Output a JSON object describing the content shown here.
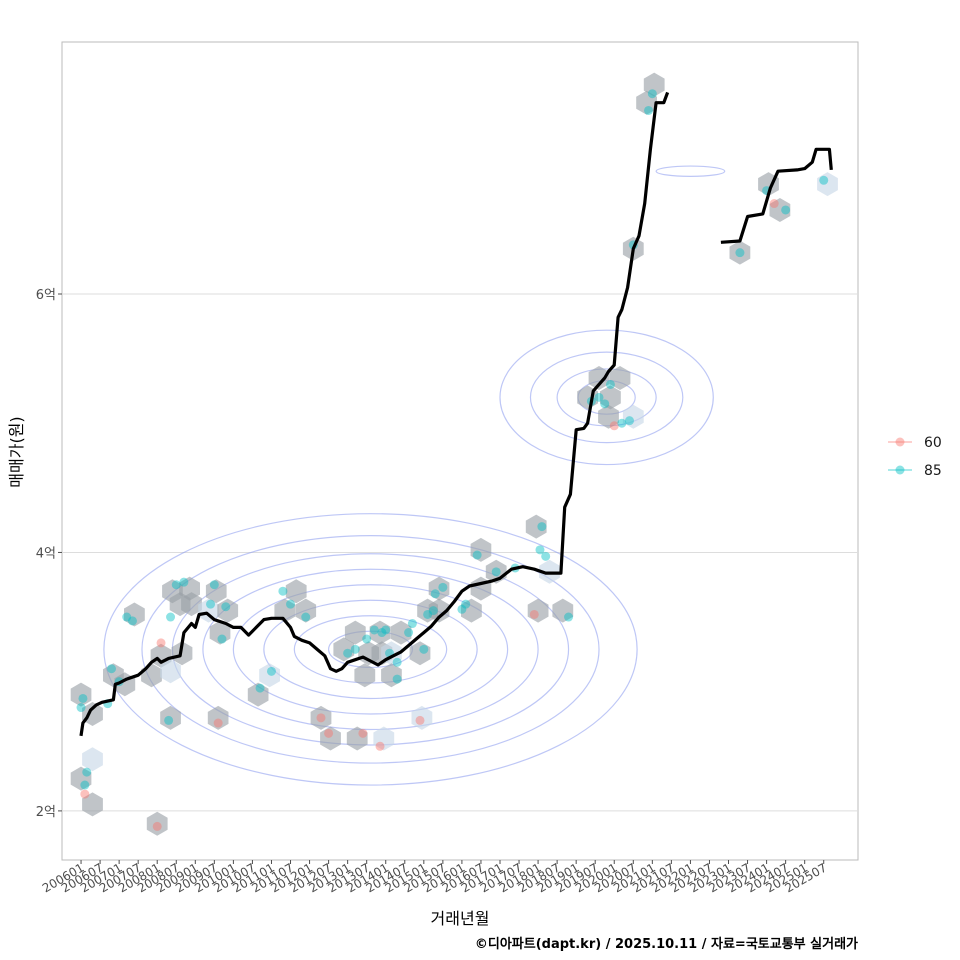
{
  "chart_data": {
    "type": "line",
    "xlabel": "거래년월",
    "ylabel": "매매가(원)",
    "caption": "©디아파트(dapt.kr) / 2025.10.11 / 자료=국토교통부 실거래가",
    "x_ticks": [
      "200601",
      "200607",
      "200701",
      "200707",
      "200801",
      "200807",
      "200901",
      "200907",
      "201001",
      "201007",
      "201101",
      "201107",
      "201201",
      "201207",
      "201301",
      "201307",
      "201401",
      "201407",
      "201501",
      "201507",
      "201601",
      "201607",
      "201701",
      "201707",
      "201801",
      "201807",
      "201901",
      "201907",
      "202001",
      "202007",
      "202101",
      "202107",
      "202201",
      "202207",
      "202301",
      "202307",
      "202401",
      "202407",
      "202501",
      "202507"
    ],
    "y_ticks": [
      {
        "value": 2,
        "label": "2억"
      },
      {
        "value": 4,
        "label": "4억"
      },
      {
        "value": 6,
        "label": "6억"
      }
    ],
    "xlim": [
      2005.5,
      2026.4
    ],
    "ylim": [
      1.62,
      7.95
    ],
    "legend": {
      "position": "right",
      "entries": [
        {
          "name": "60",
          "color": "#F8766D"
        },
        {
          "name": "85",
          "color": "#00BFC4"
        }
      ]
    },
    "colors": {
      "trend": "#000000",
      "hex": "#9aa0a6",
      "hex_light": "#c6d6e6",
      "contour": "#8899ee",
      "grid": "#dddddd",
      "border": "#bbbbbb"
    },
    "trend_units": "억원",
    "trend_segments": [
      {
        "name": "trend-1",
        "points": [
          [
            2006.0,
            2.58
          ],
          [
            2006.05,
            2.68
          ],
          [
            2006.15,
            2.72
          ],
          [
            2006.25,
            2.78
          ],
          [
            2006.4,
            2.82
          ],
          [
            2006.55,
            2.84
          ],
          [
            2006.85,
            2.86
          ],
          [
            2006.9,
            2.98
          ],
          [
            2007.0,
            2.99
          ],
          [
            2007.2,
            3.02
          ],
          [
            2007.5,
            3.05
          ],
          [
            2007.7,
            3.1
          ],
          [
            2007.85,
            3.15
          ],
          [
            2008.0,
            3.18
          ],
          [
            2008.1,
            3.15
          ],
          [
            2008.3,
            3.18
          ],
          [
            2008.6,
            3.2
          ],
          [
            2008.7,
            3.38
          ],
          [
            2008.9,
            3.45
          ],
          [
            2009.0,
            3.42
          ],
          [
            2009.1,
            3.52
          ],
          [
            2009.3,
            3.53
          ],
          [
            2009.5,
            3.48
          ],
          [
            2009.8,
            3.45
          ],
          [
            2010.0,
            3.42
          ],
          [
            2010.2,
            3.42
          ],
          [
            2010.4,
            3.36
          ],
          [
            2010.6,
            3.42
          ],
          [
            2010.8,
            3.48
          ],
          [
            2011.0,
            3.49
          ],
          [
            2011.3,
            3.49
          ],
          [
            2011.5,
            3.42
          ],
          [
            2011.6,
            3.35
          ],
          [
            2011.8,
            3.32
          ],
          [
            2012.0,
            3.3
          ],
          [
            2012.2,
            3.25
          ],
          [
            2012.4,
            3.2
          ],
          [
            2012.55,
            3.1
          ],
          [
            2012.7,
            3.08
          ],
          [
            2012.85,
            3.1
          ],
          [
            2013.0,
            3.15
          ],
          [
            2013.2,
            3.17
          ],
          [
            2013.4,
            3.19
          ],
          [
            2013.6,
            3.16
          ],
          [
            2013.8,
            3.13
          ],
          [
            2014.0,
            3.17
          ],
          [
            2014.2,
            3.2
          ],
          [
            2014.4,
            3.23
          ],
          [
            2014.6,
            3.28
          ],
          [
            2014.8,
            3.33
          ],
          [
            2015.0,
            3.38
          ],
          [
            2015.2,
            3.43
          ],
          [
            2015.4,
            3.5
          ],
          [
            2015.6,
            3.55
          ],
          [
            2015.8,
            3.62
          ],
          [
            2016.0,
            3.7
          ],
          [
            2016.2,
            3.74
          ],
          [
            2016.5,
            3.76
          ],
          [
            2016.8,
            3.78
          ],
          [
            2017.0,
            3.8
          ],
          [
            2017.3,
            3.87
          ],
          [
            2017.6,
            3.89
          ],
          [
            2017.9,
            3.87
          ],
          [
            2018.2,
            3.84
          ],
          [
            2018.6,
            3.84
          ],
          [
            2018.7,
            4.35
          ],
          [
            2018.85,
            4.45
          ],
          [
            2019.0,
            4.95
          ],
          [
            2019.2,
            4.96
          ],
          [
            2019.3,
            5.0
          ],
          [
            2019.45,
            5.25
          ],
          [
            2019.6,
            5.3
          ],
          [
            2019.75,
            5.35
          ],
          [
            2019.85,
            5.4
          ],
          [
            2020.0,
            5.45
          ],
          [
            2020.1,
            5.82
          ],
          [
            2020.2,
            5.88
          ],
          [
            2020.35,
            6.05
          ],
          [
            2020.5,
            6.35
          ],
          [
            2020.65,
            6.45
          ],
          [
            2020.8,
            6.7
          ],
          [
            2020.95,
            7.12
          ],
          [
            2021.1,
            7.48
          ],
          [
            2021.3,
            7.48
          ],
          [
            2021.4,
            7.56
          ]
        ]
      },
      {
        "name": "trend-2",
        "points": [
          [
            2022.8,
            6.4
          ],
          [
            2023.3,
            6.41
          ],
          [
            2023.5,
            6.6
          ],
          [
            2023.9,
            6.62
          ],
          [
            2024.1,
            6.82
          ],
          [
            2024.3,
            6.95
          ],
          [
            2024.8,
            6.96
          ],
          [
            2025.0,
            6.97
          ],
          [
            2025.2,
            7.02
          ],
          [
            2025.3,
            7.12
          ],
          [
            2025.65,
            7.12
          ],
          [
            2025.7,
            6.96
          ]
        ]
      }
    ],
    "scatter_units": "억원",
    "scatter_points": [
      {
        "x": 2006.0,
        "y": 2.8,
        "s": "85"
      },
      {
        "x": 2006.05,
        "y": 2.87,
        "s": "85"
      },
      {
        "x": 2006.1,
        "y": 2.2,
        "s": "85"
      },
      {
        "x": 2006.15,
        "y": 2.3,
        "s": "85"
      },
      {
        "x": 2006.1,
        "y": 2.13,
        "s": "60"
      },
      {
        "x": 2006.7,
        "y": 2.83,
        "s": "85"
      },
      {
        "x": 2006.8,
        "y": 3.1,
        "s": "85"
      },
      {
        "x": 2007.0,
        "y": 3.0,
        "s": "85"
      },
      {
        "x": 2007.2,
        "y": 3.5,
        "s": "85"
      },
      {
        "x": 2007.35,
        "y": 3.47,
        "s": "85"
      },
      {
        "x": 2008.1,
        "y": 3.3,
        "s": "60"
      },
      {
        "x": 2008.3,
        "y": 2.7,
        "s": "85"
      },
      {
        "x": 2008.35,
        "y": 3.5,
        "s": "85"
      },
      {
        "x": 2008.5,
        "y": 3.75,
        "s": "85"
      },
      {
        "x": 2008.7,
        "y": 3.77,
        "s": "85"
      },
      {
        "x": 2008.0,
        "y": 1.88,
        "s": "60"
      },
      {
        "x": 2009.5,
        "y": 3.75,
        "s": "85"
      },
      {
        "x": 2009.4,
        "y": 3.6,
        "s": "85"
      },
      {
        "x": 2009.7,
        "y": 3.33,
        "s": "85"
      },
      {
        "x": 2009.8,
        "y": 3.58,
        "s": "85"
      },
      {
        "x": 2009.6,
        "y": 2.68,
        "s": "60"
      },
      {
        "x": 2010.7,
        "y": 2.95,
        "s": "85"
      },
      {
        "x": 2011.0,
        "y": 3.08,
        "s": "85"
      },
      {
        "x": 2011.3,
        "y": 3.7,
        "s": "85"
      },
      {
        "x": 2011.5,
        "y": 3.6,
        "s": "85"
      },
      {
        "x": 2011.9,
        "y": 3.5,
        "s": "85"
      },
      {
        "x": 2012.3,
        "y": 2.72,
        "s": "60"
      },
      {
        "x": 2012.5,
        "y": 2.6,
        "s": "60"
      },
      {
        "x": 2013.0,
        "y": 3.22,
        "s": "85"
      },
      {
        "x": 2013.2,
        "y": 3.25,
        "s": "85"
      },
      {
        "x": 2013.5,
        "y": 3.33,
        "s": "85"
      },
      {
        "x": 2013.7,
        "y": 3.4,
        "s": "85"
      },
      {
        "x": 2013.4,
        "y": 2.6,
        "s": "60"
      },
      {
        "x": 2013.9,
        "y": 3.38,
        "s": "85"
      },
      {
        "x": 2014.0,
        "y": 3.4,
        "s": "85"
      },
      {
        "x": 2014.1,
        "y": 3.22,
        "s": "85"
      },
      {
        "x": 2014.3,
        "y": 3.02,
        "s": "85"
      },
      {
        "x": 2014.3,
        "y": 3.15,
        "s": "85"
      },
      {
        "x": 2013.85,
        "y": 2.5,
        "s": "60"
      },
      {
        "x": 2014.6,
        "y": 3.38,
        "s": "85"
      },
      {
        "x": 2014.7,
        "y": 3.45,
        "s": "85"
      },
      {
        "x": 2015.0,
        "y": 3.25,
        "s": "85"
      },
      {
        "x": 2015.1,
        "y": 3.52,
        "s": "85"
      },
      {
        "x": 2015.25,
        "y": 3.55,
        "s": "85"
      },
      {
        "x": 2015.3,
        "y": 3.68,
        "s": "85"
      },
      {
        "x": 2015.5,
        "y": 3.73,
        "s": "85"
      },
      {
        "x": 2014.9,
        "y": 2.7,
        "s": "60"
      },
      {
        "x": 2016.0,
        "y": 3.56,
        "s": "85"
      },
      {
        "x": 2016.1,
        "y": 3.6,
        "s": "85"
      },
      {
        "x": 2016.4,
        "y": 3.98,
        "s": "85"
      },
      {
        "x": 2016.9,
        "y": 3.85,
        "s": "85"
      },
      {
        "x": 2017.4,
        "y": 3.88,
        "s": "85"
      },
      {
        "x": 2017.9,
        "y": 3.52,
        "s": "60"
      },
      {
        "x": 2018.1,
        "y": 4.2,
        "s": "85"
      },
      {
        "x": 2018.05,
        "y": 4.02,
        "s": "85"
      },
      {
        "x": 2018.2,
        "y": 3.97,
        "s": "85"
      },
      {
        "x": 2018.8,
        "y": 3.5,
        "s": "85"
      },
      {
        "x": 2019.4,
        "y": 5.17,
        "s": "85"
      },
      {
        "x": 2019.75,
        "y": 5.15,
        "s": "85"
      },
      {
        "x": 2019.9,
        "y": 5.3,
        "s": "85"
      },
      {
        "x": 2019.6,
        "y": 5.2,
        "s": "85"
      },
      {
        "x": 2020.0,
        "y": 4.98,
        "s": "60"
      },
      {
        "x": 2020.2,
        "y": 5.0,
        "s": "85"
      },
      {
        "x": 2020.4,
        "y": 5.02,
        "s": "85"
      },
      {
        "x": 2020.5,
        "y": 6.38,
        "s": "85"
      },
      {
        "x": 2020.9,
        "y": 7.42,
        "s": "85"
      },
      {
        "x": 2021.0,
        "y": 7.55,
        "s": "85"
      },
      {
        "x": 2023.3,
        "y": 6.32,
        "s": "85"
      },
      {
        "x": 2024.0,
        "y": 6.8,
        "s": "85"
      },
      {
        "x": 2024.2,
        "y": 6.7,
        "s": "60"
      },
      {
        "x": 2024.5,
        "y": 6.65,
        "s": "85"
      },
      {
        "x": 2025.5,
        "y": 6.88,
        "s": "85"
      }
    ],
    "hexbins": [
      {
        "x": 2006.0,
        "y": 2.9
      },
      {
        "x": 2006.3,
        "y": 2.75
      },
      {
        "x": 2006.0,
        "y": 2.25
      },
      {
        "x": 2006.3,
        "y": 2.4
      },
      {
        "x": 2006.3,
        "y": 2.05
      },
      {
        "x": 2006.85,
        "y": 3.05
      },
      {
        "x": 2007.15,
        "y": 2.98
      },
      {
        "x": 2007.4,
        "y": 3.52
      },
      {
        "x": 2007.85,
        "y": 3.05
      },
      {
        "x": 2008.1,
        "y": 3.2
      },
      {
        "x": 2008.35,
        "y": 3.08
      },
      {
        "x": 2008.65,
        "y": 3.22
      },
      {
        "x": 2008.4,
        "y": 3.7
      },
      {
        "x": 2008.6,
        "y": 3.6
      },
      {
        "x": 2008.85,
        "y": 3.72
      },
      {
        "x": 2008.9,
        "y": 3.6
      },
      {
        "x": 2009.55,
        "y": 3.7
      },
      {
        "x": 2009.35,
        "y": 3.55
      },
      {
        "x": 2009.65,
        "y": 3.38
      },
      {
        "x": 2009.85,
        "y": 3.55
      },
      {
        "x": 2008.35,
        "y": 2.72
      },
      {
        "x": 2009.6,
        "y": 2.72
      },
      {
        "x": 2008.0,
        "y": 1.9
      },
      {
        "x": 2010.65,
        "y": 2.9
      },
      {
        "x": 2010.95,
        "y": 3.05
      },
      {
        "x": 2011.35,
        "y": 3.55
      },
      {
        "x": 2011.65,
        "y": 3.7
      },
      {
        "x": 2011.9,
        "y": 3.55
      },
      {
        "x": 2012.3,
        "y": 2.72
      },
      {
        "x": 2012.55,
        "y": 2.56
      },
      {
        "x": 2013.25,
        "y": 2.56
      },
      {
        "x": 2013.95,
        "y": 2.56
      },
      {
        "x": 2012.9,
        "y": 3.25
      },
      {
        "x": 2013.2,
        "y": 3.38
      },
      {
        "x": 2013.55,
        "y": 3.22
      },
      {
        "x": 2013.45,
        "y": 3.05
      },
      {
        "x": 2013.85,
        "y": 3.38
      },
      {
        "x": 2013.9,
        "y": 3.22
      },
      {
        "x": 2014.15,
        "y": 3.22
      },
      {
        "x": 2014.15,
        "y": 3.05
      },
      {
        "x": 2014.4,
        "y": 3.38
      },
      {
        "x": 2014.9,
        "y": 3.22
      },
      {
        "x": 2015.1,
        "y": 3.55
      },
      {
        "x": 2015.4,
        "y": 3.72
      },
      {
        "x": 2015.4,
        "y": 3.55
      },
      {
        "x": 2014.95,
        "y": 2.72
      },
      {
        "x": 2016.25,
        "y": 3.55
      },
      {
        "x": 2016.5,
        "y": 4.02
      },
      {
        "x": 2016.5,
        "y": 3.72
      },
      {
        "x": 2016.9,
        "y": 3.85
      },
      {
        "x": 2017.95,
        "y": 4.2
      },
      {
        "x": 2018.0,
        "y": 3.55
      },
      {
        "x": 2018.3,
        "y": 3.85
      },
      {
        "x": 2018.65,
        "y": 3.55
      },
      {
        "x": 2019.3,
        "y": 5.2
      },
      {
        "x": 2019.6,
        "y": 5.35
      },
      {
        "x": 2019.9,
        "y": 5.2
      },
      {
        "x": 2020.15,
        "y": 5.35
      },
      {
        "x": 2019.85,
        "y": 5.05
      },
      {
        "x": 2020.5,
        "y": 5.05
      },
      {
        "x": 2020.5,
        "y": 6.35
      },
      {
        "x": 2020.85,
        "y": 7.48
      },
      {
        "x": 2021.05,
        "y": 7.62
      },
      {
        "x": 2023.3,
        "y": 6.32
      },
      {
        "x": 2024.05,
        "y": 6.85
      },
      {
        "x": 2024.35,
        "y": 6.65
      },
      {
        "x": 2025.6,
        "y": 6.85
      }
    ],
    "contour_groups": [
      {
        "cx": 2013.6,
        "cy": 3.25,
        "levels": [
          [
            1.1,
            0.14
          ],
          [
            2.0,
            0.26
          ],
          [
            2.8,
            0.38
          ],
          [
            3.6,
            0.5
          ],
          [
            4.4,
            0.62
          ],
          [
            5.2,
            0.74
          ],
          [
            6.0,
            0.88
          ],
          [
            7.0,
            1.05
          ]
        ]
      },
      {
        "cx": 2019.8,
        "cy": 5.2,
        "levels": [
          [
            0.75,
            0.13
          ],
          [
            1.3,
            0.22
          ],
          [
            2.0,
            0.35
          ],
          [
            2.8,
            0.52
          ]
        ]
      },
      {
        "cx": 2022.0,
        "cy": 6.95,
        "levels": [
          [
            0.9,
            0.04
          ]
        ]
      }
    ]
  }
}
